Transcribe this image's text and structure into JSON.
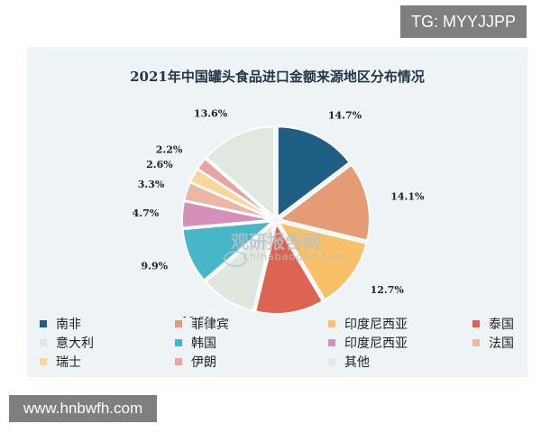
{
  "badge_text": "TG: MYYJJPP",
  "site_text": "www.hnbwfh.com",
  "watermark": {
    "text": "观研报告网",
    "sub": "chinabaogao.com"
  },
  "chart_data": {
    "type": "pie",
    "title": "2021年中国罐头食品进口金额来源地区分布情况",
    "slices": [
      {
        "label": "南非",
        "value": 14.7,
        "display": "14.7%",
        "color": "#1f5f85"
      },
      {
        "label": "菲律宾",
        "value": 14.1,
        "display": "14.1%",
        "color": "#e59b74"
      },
      {
        "label": "印度尼西亚",
        "value": 12.7,
        "display": "12.7%",
        "color": "#f7c069"
      },
      {
        "label": "泰国",
        "value": 12.3,
        "display": "12.3%",
        "color": "#dd6452"
      },
      {
        "label": "意大利",
        "value": 10.0,
        "display": "10.0%",
        "color": "#dfe7df"
      },
      {
        "label": "韩国",
        "value": 9.9,
        "display": "9.9%",
        "color": "#47b6c8"
      },
      {
        "label": "印度尼西亚",
        "value": 4.7,
        "display": "4.7%",
        "color": "#d48fba"
      },
      {
        "label": "法国",
        "value": 3.3,
        "display": "3.3%",
        "color": "#eab8a4"
      },
      {
        "label": "瑞士",
        "value": 2.6,
        "display": "2.6%",
        "color": "#f9d79c"
      },
      {
        "label": "伊朗",
        "value": 2.2,
        "display": "2.2%",
        "color": "#e8a3a3"
      },
      {
        "label": "其他",
        "value": 13.6,
        "display": "13.6%",
        "color": "#e1e8e0"
      }
    ],
    "legend_position": "bottom"
  }
}
